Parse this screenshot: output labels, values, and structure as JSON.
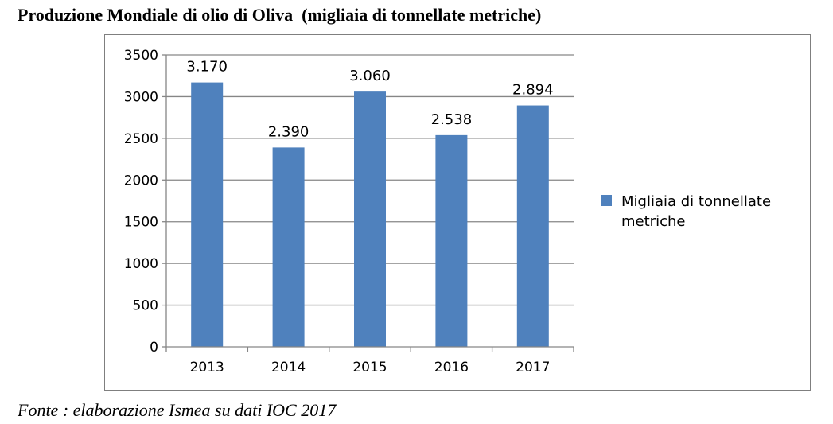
{
  "title": "Produzione Mondiale di olio di Oliva  (migliaia di tonnellate metriche)",
  "source": "Fonte : elaborazione Ismea su dati IOC 2017",
  "chart_data": {
    "type": "bar",
    "title": "Produzione Mondiale di olio di Oliva  (migliaia di tonnellate metriche)",
    "categories": [
      "2013",
      "2014",
      "2015",
      "2016",
      "2017"
    ],
    "series": [
      {
        "name": "Migliaia di tonnellate metriche",
        "legend_lines": [
          "Migliaia di tonnellate",
          "metriche"
        ],
        "values": [
          3170,
          2390,
          3060,
          2538,
          2894
        ],
        "labels": [
          "3.170",
          "2.390",
          "3.060",
          "2.538",
          "2.894"
        ],
        "color": "#4f81bd"
      }
    ],
    "yticks": [
      "0",
      "500",
      "1000",
      "1500",
      "2000",
      "2500",
      "3000",
      "3500"
    ],
    "ylim": [
      0,
      3500
    ],
    "xlabel": "",
    "ylabel": "",
    "grid": true,
    "legend": "right"
  },
  "colors": {
    "bar": "#4f81bd",
    "grid": "#868686",
    "frame": "#7f7f7f"
  }
}
